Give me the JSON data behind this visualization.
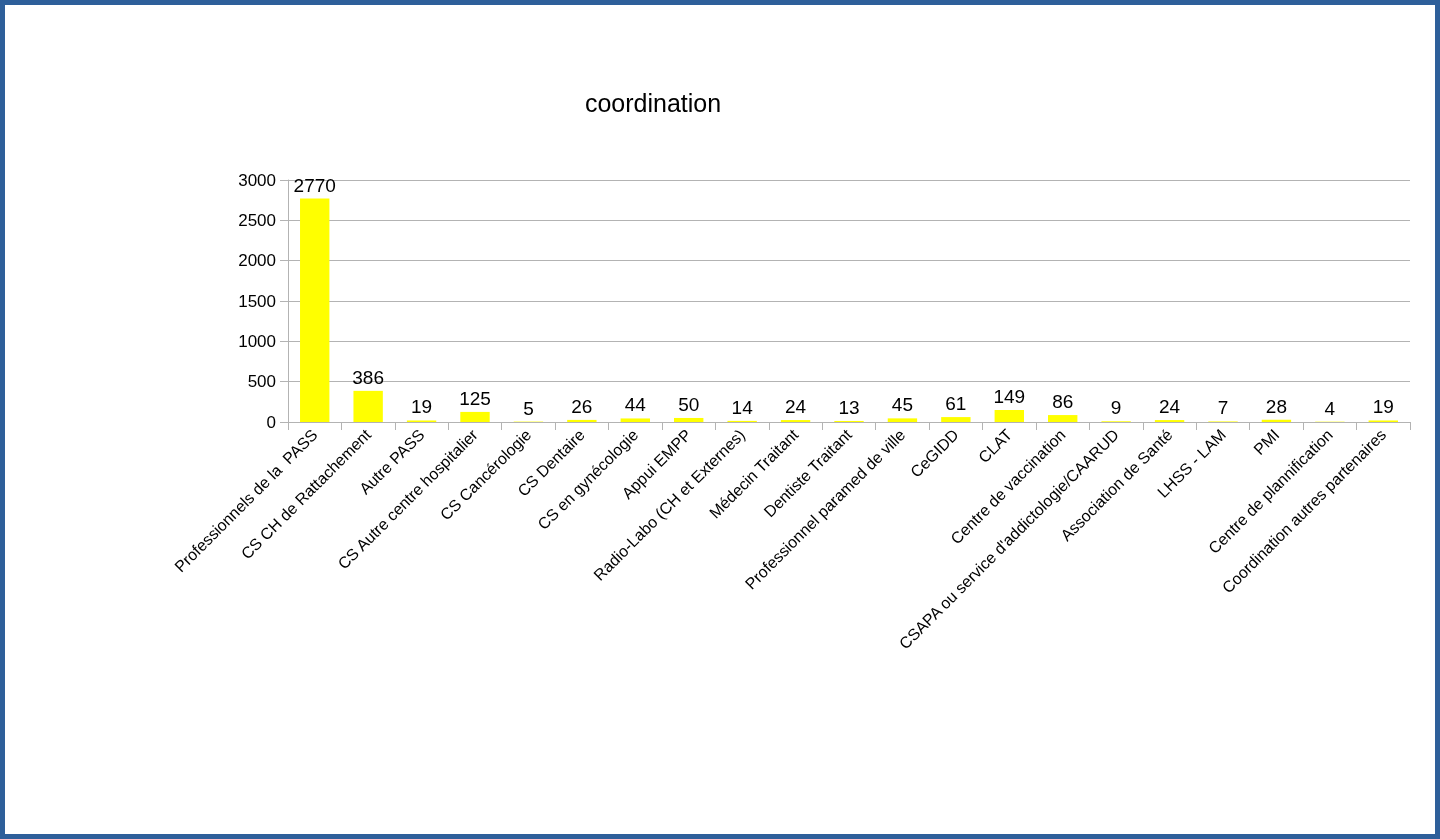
{
  "chart_data": {
    "type": "bar",
    "title": "coordination",
    "categories": [
      "Professionnels de la  PASS",
      "CS CH de Rattachement",
      "Autre PASS",
      "CS Autre centre hospitalier",
      "CS Cancérologie",
      "CS Dentaire",
      "CS en gynécologie",
      "Appui EMPP",
      "Radio-Labo (CH et Externes)",
      "Médecin Traitant",
      "Dentiste Traitant",
      "Professionnel paramed de ville",
      "CeGIDD",
      "CLAT",
      "Centre de vaccination",
      "CSAPA ou service d'addictologie/CAARUD",
      "Association de Santé",
      "LHSS - LAM",
      "PMI",
      "Centre de plannification",
      "Coordination autres partenaires"
    ],
    "values": [
      2770,
      386,
      19,
      125,
      5,
      26,
      44,
      50,
      14,
      24,
      13,
      45,
      61,
      149,
      86,
      9,
      24,
      7,
      28,
      4,
      19
    ],
    "color": "#ffff00",
    "ylim": [
      0,
      3000
    ],
    "yticks": [
      0,
      500,
      1000,
      1500,
      2000,
      2500,
      3000
    ],
    "grid": "y",
    "data_labels": true
  }
}
